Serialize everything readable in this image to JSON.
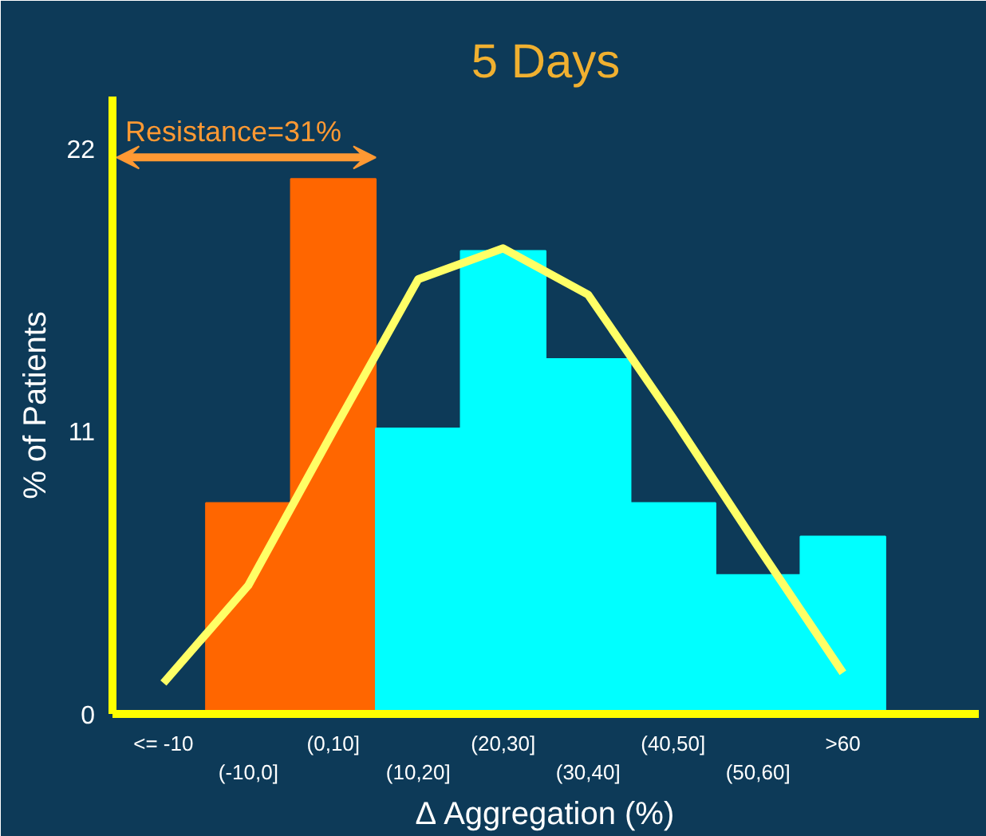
{
  "chart_data": {
    "type": "bar",
    "title": "5 Days",
    "xlabel": "Δ Aggregation (%)",
    "ylabel": "% of Patients",
    "categories": [
      "<= -10",
      "(-10,0]",
      "(0,10]",
      "(10,20]",
      "(20,30]",
      "(30,40]",
      "(40,50]",
      "(50,60]",
      ">60"
    ],
    "values": [
      0,
      8.2,
      20.8,
      11.1,
      18.0,
      13.8,
      8.2,
      5.4,
      6.9
    ],
    "colors": [
      "#ff6600",
      "#ff6600",
      "#ff6600",
      "#00ffff",
      "#00ffff",
      "#00ffff",
      "#00ffff",
      "#00ffff",
      "#00ffff"
    ],
    "series": [
      {
        "type": "line",
        "color": "#ffff66",
        "values": [
          1.2,
          5.0,
          11.0,
          16.9,
          18.1,
          16.3,
          11.5,
          6.5,
          1.6
        ]
      }
    ],
    "annotations": [
      "Resistance=31%"
    ],
    "ylim": [
      0,
      24
    ],
    "yticks": [
      0,
      11,
      22
    ],
    "grid": false
  }
}
